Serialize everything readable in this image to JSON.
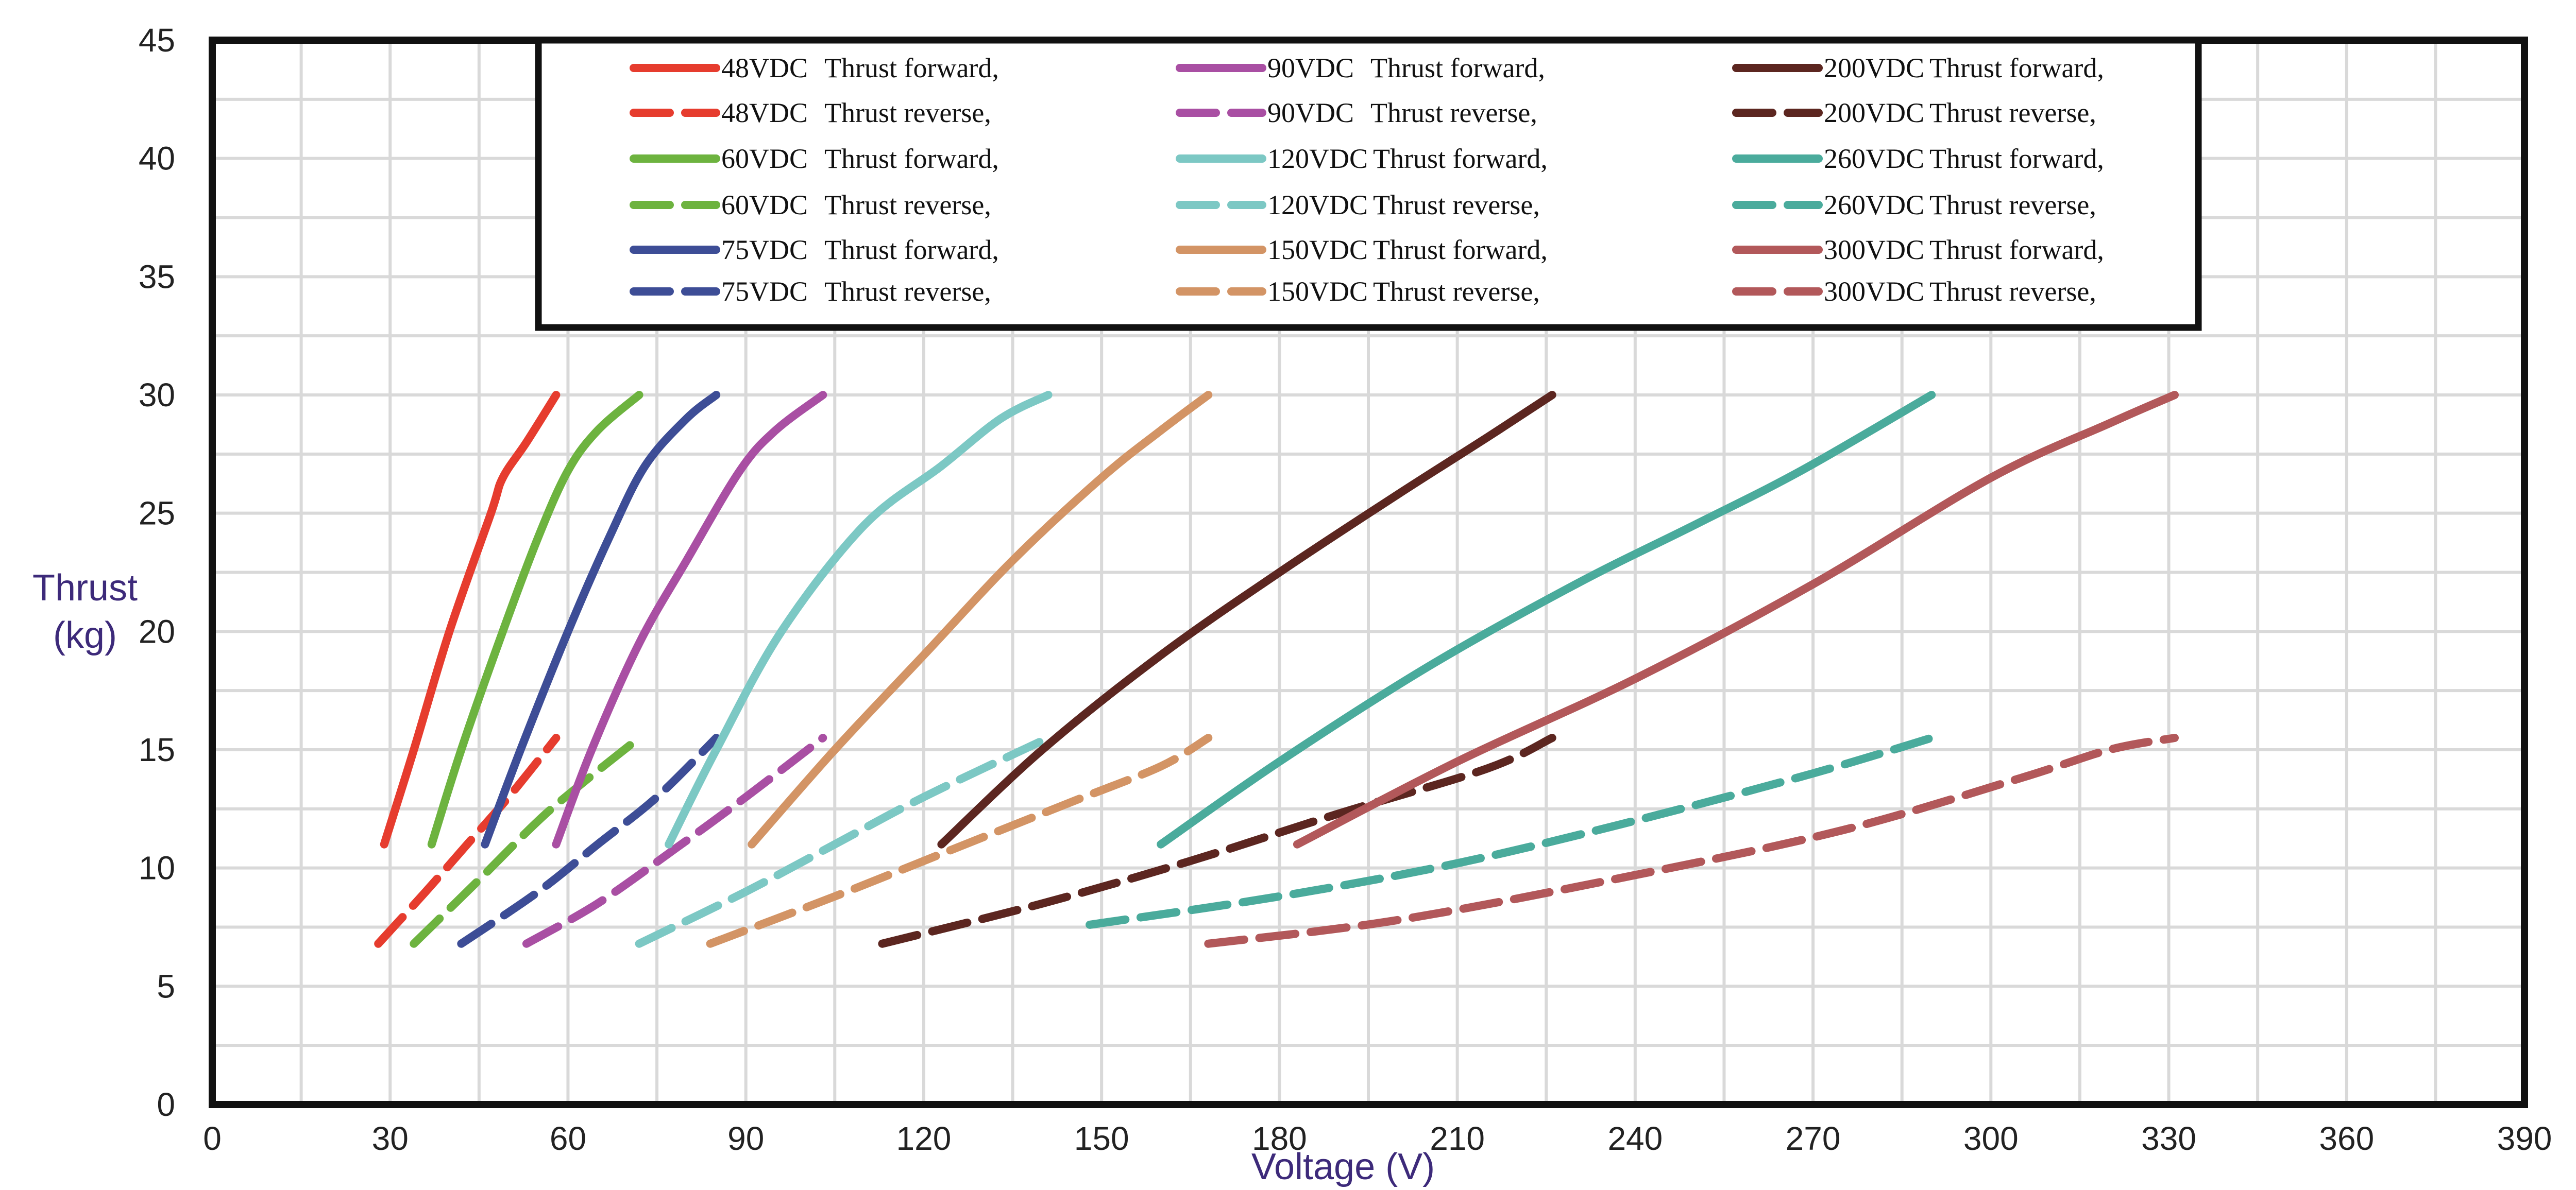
{
  "chart_data": {
    "type": "line",
    "title": "",
    "xlabel": "Voltage (V)",
    "ylabel": [
      "Thrust",
      "(kg)"
    ],
    "xlim": [
      0,
      390
    ],
    "ylim": [
      0,
      45
    ],
    "xticks": [
      0,
      30,
      60,
      90,
      120,
      150,
      180,
      210,
      240,
      270,
      300,
      330,
      360,
      390
    ],
    "yticks": [
      0,
      5,
      10,
      15,
      20,
      25,
      30,
      35,
      40,
      45
    ],
    "grid": true,
    "legend_position": "top-center",
    "series": [
      {
        "name": "48VDC",
        "direction": "Thrust forward,",
        "style": "solid",
        "color": "#e63c2e",
        "points": [
          [
            29,
            11
          ],
          [
            34,
            15
          ],
          [
            40,
            20
          ],
          [
            47,
            25
          ],
          [
            49,
            26.5
          ],
          [
            53,
            28
          ],
          [
            58,
            30
          ]
        ]
      },
      {
        "name": "48VDC",
        "direction": "Thrust reverse,",
        "style": "dashed",
        "color": "#e63c2e",
        "points": [
          [
            28,
            6.8
          ],
          [
            36,
            9
          ],
          [
            43,
            11
          ],
          [
            50,
            13
          ],
          [
            58,
            15.5
          ]
        ]
      },
      {
        "name": "60VDC",
        "direction": "Thrust forward,",
        "style": "solid",
        "color": "#6db33f",
        "points": [
          [
            37,
            11
          ],
          [
            42,
            15
          ],
          [
            49,
            20
          ],
          [
            55,
            24
          ],
          [
            60,
            26.8
          ],
          [
            65,
            28.5
          ],
          [
            72,
            30
          ]
        ]
      },
      {
        "name": "60VDC",
        "direction": "Thrust reverse,",
        "style": "dashed",
        "color": "#6db33f",
        "points": [
          [
            34,
            6.8
          ],
          [
            45,
            9.5
          ],
          [
            55,
            12
          ],
          [
            62,
            13.5
          ],
          [
            72,
            15.5
          ]
        ]
      },
      {
        "name": "75VDC",
        "direction": "Thrust forward,",
        "style": "solid",
        "color": "#3d4d96",
        "points": [
          [
            46,
            11
          ],
          [
            52,
            15
          ],
          [
            60,
            20
          ],
          [
            67,
            24
          ],
          [
            73,
            27
          ],
          [
            80,
            29
          ],
          [
            85,
            30
          ]
        ]
      },
      {
        "name": "75VDC",
        "direction": "Thrust reverse,",
        "style": "dashed",
        "color": "#3d4d96",
        "points": [
          [
            42,
            6.8
          ],
          [
            55,
            9
          ],
          [
            65,
            11
          ],
          [
            75,
            13
          ],
          [
            85,
            15.5
          ]
        ]
      },
      {
        "name": "90VDC",
        "direction": "Thrust forward,",
        "style": "solid",
        "color": "#a94fa3",
        "points": [
          [
            58,
            11
          ],
          [
            64,
            15
          ],
          [
            72,
            19.5
          ],
          [
            80,
            23
          ],
          [
            89,
            26.8
          ],
          [
            95,
            28.5
          ],
          [
            103,
            30
          ]
        ]
      },
      {
        "name": "90VDC",
        "direction": "Thrust reverse,",
        "style": "dashed",
        "color": "#a94fa3",
        "points": [
          [
            53,
            6.8
          ],
          [
            65,
            8.5
          ],
          [
            78,
            10.8
          ],
          [
            90,
            13
          ],
          [
            103,
            15.5
          ]
        ]
      },
      {
        "name": "120VDC",
        "direction": "Thrust forward,",
        "style": "solid",
        "color": "#7cc8c4",
        "points": [
          [
            77,
            11
          ],
          [
            85,
            15
          ],
          [
            96,
            20
          ],
          [
            110,
            24.5
          ],
          [
            123,
            27
          ],
          [
            133,
            29
          ],
          [
            141,
            30
          ]
        ]
      },
      {
        "name": "120VDC",
        "direction": "Thrust reverse,",
        "style": "dashed",
        "color": "#7cc8c4",
        "points": [
          [
            72,
            6.8
          ],
          [
            90,
            9
          ],
          [
            105,
            11
          ],
          [
            120,
            13
          ],
          [
            141,
            15.5
          ]
        ]
      },
      {
        "name": "150VDC",
        "direction": "Thrust forward,",
        "style": "solid",
        "color": "#d39465",
        "points": [
          [
            91,
            11
          ],
          [
            105,
            15
          ],
          [
            120,
            19
          ],
          [
            135,
            23
          ],
          [
            150,
            26.5
          ],
          [
            160,
            28.5
          ],
          [
            168,
            30
          ]
        ]
      },
      {
        "name": "150VDC",
        "direction": "Thrust reverse,",
        "style": "dashed",
        "color": "#d39465",
        "points": [
          [
            84,
            6.8
          ],
          [
            105,
            8.8
          ],
          [
            125,
            10.8
          ],
          [
            145,
            12.8
          ],
          [
            160,
            14.3
          ],
          [
            168,
            15.5
          ]
        ]
      },
      {
        "name": "200VDC",
        "direction": "Thrust forward,",
        "style": "solid",
        "color": "#5c2620",
        "points": [
          [
            123,
            11
          ],
          [
            140,
            15
          ],
          [
            160,
            19
          ],
          [
            180,
            22.5
          ],
          [
            200,
            25.8
          ],
          [
            215,
            28.2
          ],
          [
            226,
            30
          ]
        ]
      },
      {
        "name": "200VDC",
        "direction": "Thrust reverse,",
        "style": "dashed",
        "color": "#5c2620",
        "points": [
          [
            113,
            6.8
          ],
          [
            140,
            8.5
          ],
          [
            165,
            10.3
          ],
          [
            190,
            12.3
          ],
          [
            215,
            14.2
          ],
          [
            226,
            15.5
          ]
        ]
      },
      {
        "name": "260VDC",
        "direction": "Thrust forward,",
        "style": "solid",
        "color": "#4aab9c",
        "points": [
          [
            160,
            11
          ],
          [
            180,
            14.5
          ],
          [
            205,
            18.5
          ],
          [
            230,
            22
          ],
          [
            250,
            24.5
          ],
          [
            268,
            26.8
          ],
          [
            290,
            30
          ]
        ]
      },
      {
        "name": "260VDC",
        "direction": "Thrust reverse,",
        "style": "dashed",
        "color": "#4aab9c",
        "points": [
          [
            148,
            7.6
          ],
          [
            180,
            8.8
          ],
          [
            210,
            10.2
          ],
          [
            240,
            12
          ],
          [
            270,
            14
          ],
          [
            290,
            15.5
          ]
        ]
      },
      {
        "name": "300VDC",
        "direction": "Thrust forward,",
        "style": "solid",
        "color": "#b2585a",
        "points": [
          [
            183,
            11
          ],
          [
            210,
            14.5
          ],
          [
            240,
            18
          ],
          [
            270,
            22
          ],
          [
            300,
            26.5
          ],
          [
            320,
            28.8
          ],
          [
            331,
            30
          ]
        ]
      },
      {
        "name": "300VDC",
        "direction": "Thrust reverse,",
        "style": "dashed",
        "color": "#b2585a",
        "points": [
          [
            168,
            6.8
          ],
          [
            200,
            7.8
          ],
          [
            240,
            9.7
          ],
          [
            275,
            11.6
          ],
          [
            305,
            13.8
          ],
          [
            320,
            15
          ],
          [
            331,
            15.5
          ]
        ]
      }
    ]
  }
}
